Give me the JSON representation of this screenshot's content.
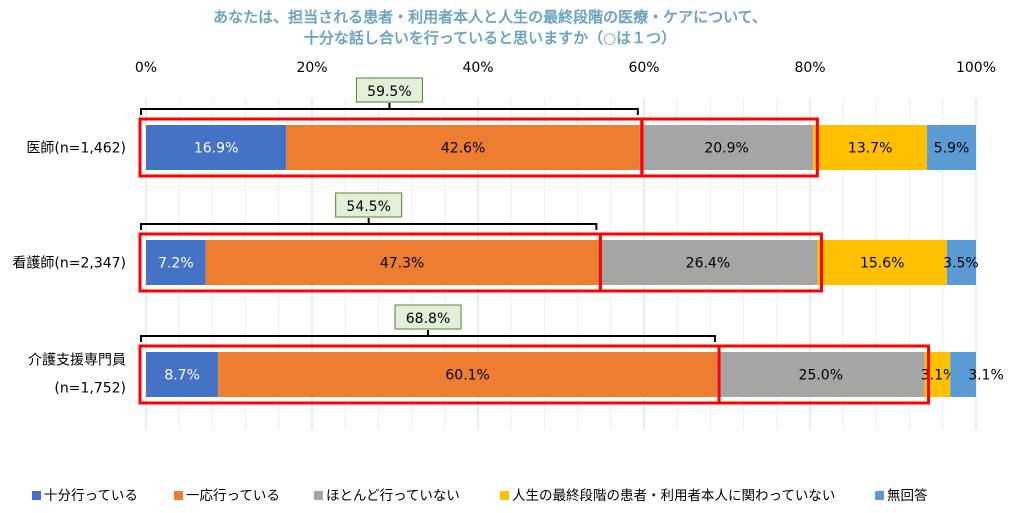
{
  "chart_data": {
    "type": "bar",
    "orientation": "horizontal-stacked-100",
    "title": [
      "あなたは、担当される患者・利用者本人と人生の最終段階の医療・ケアについて、",
      "十分な話し合いを行っていると思いますか（○は１つ）"
    ],
    "xlim": [
      0,
      100
    ],
    "x_ticks": [
      "0%",
      "20%",
      "40%",
      "60%",
      "80%",
      "100%"
    ],
    "grid": true,
    "legend_position": "bottom",
    "categories": [
      [
        "医師(n=1,462)"
      ],
      [
        "看護師(n=2,347)"
      ],
      [
        "介護支援専門員",
        "(n=1,752)"
      ]
    ],
    "series": [
      {
        "name": "十分行っている",
        "color": "#4472C4",
        "label_color": "#ffffff",
        "values": [
          16.9,
          7.2,
          8.7
        ],
        "labels": [
          "16.9%",
          "7.2%",
          "8.7%"
        ]
      },
      {
        "name": "一応行っている",
        "color": "#ED7D31",
        "label_color": "#000000",
        "values": [
          42.6,
          47.3,
          60.1
        ],
        "labels": [
          "42.6%",
          "47.3%",
          "60.1%"
        ]
      },
      {
        "name": "ほとんど行っていない",
        "color": "#A5A5A5",
        "label_color": "#000000",
        "values": [
          20.9,
          26.4,
          25.0
        ],
        "labels": [
          "20.9%",
          "26.4%",
          "25.0%"
        ]
      },
      {
        "name": "人生の最終段階の患者・利用者本人に関わっていない",
        "color": "#FFC000",
        "label_color": "#000000",
        "values": [
          13.7,
          15.6,
          3.1
        ],
        "labels": [
          "13.7%",
          "15.6%",
          "3.1%"
        ]
      },
      {
        "name": "無回答",
        "color": "#5B9BD5",
        "label_color": "#000000",
        "values": [
          5.9,
          3.5,
          3.1
        ],
        "labels": [
          "5.9%",
          "3.5%",
          "3.1%"
        ]
      }
    ],
    "annotations": {
      "bracket_totals": [
        "59.5%",
        "54.5%",
        "68.8%"
      ],
      "highlight_color": "#FF0000"
    }
  }
}
